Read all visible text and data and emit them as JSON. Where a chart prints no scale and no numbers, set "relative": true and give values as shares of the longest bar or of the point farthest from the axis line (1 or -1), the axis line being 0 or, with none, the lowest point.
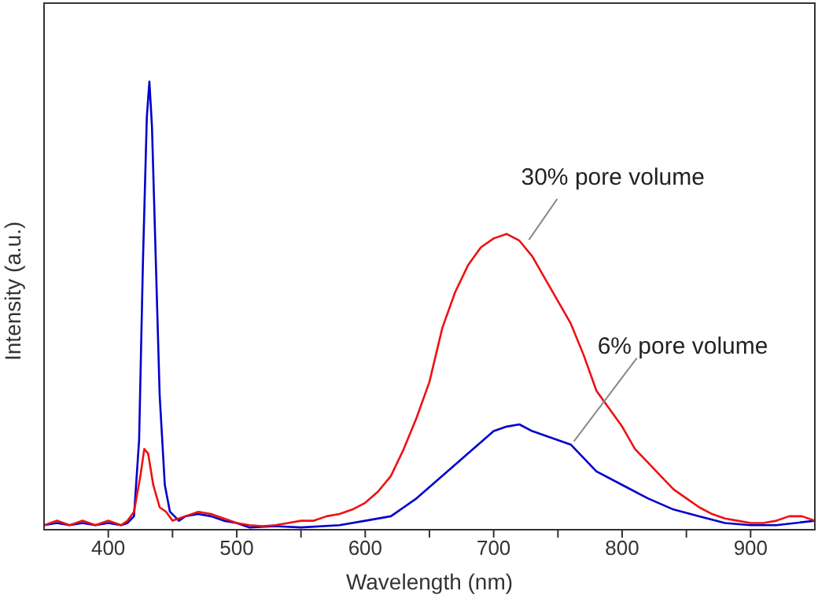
{
  "chart_data": {
    "type": "line",
    "relative": true,
    "xlabel": "Wavelength (nm)",
    "ylabel": "Intensity (a.u.)",
    "xlim": [
      350,
      950
    ],
    "xticks": [
      400,
      {
        "value": 450,
        "label": null
      },
      500,
      {
        "value": 550,
        "label": null
      },
      600,
      {
        "value": 650,
        "label": null
      },
      700,
      {
        "value": 750,
        "label": null
      },
      800,
      {
        "value": 850,
        "label": null
      },
      900
    ],
    "marker": "none",
    "line_style": "solid",
    "annotations": [
      {
        "text": "30% pore volume",
        "x": 725,
        "y": 0.64
      },
      {
        "text": "6% pore volume",
        "x": 760,
        "y": 0.19
      }
    ],
    "series": [
      {
        "color": "#0000cc",
        "x": [
          350,
          360,
          370,
          380,
          390,
          400,
          410,
          415,
          420,
          424,
          427,
          430,
          432,
          434,
          437,
          440,
          444,
          448,
          455,
          460,
          470,
          480,
          490,
          500,
          510,
          530,
          550,
          580,
          600,
          620,
          640,
          660,
          680,
          700,
          710,
          720,
          730,
          740,
          750,
          760,
          780,
          800,
          820,
          840,
          860,
          880,
          900,
          920,
          950
        ],
        "values": [
          0.01,
          0.015,
          0.01,
          0.015,
          0.01,
          0.015,
          0.01,
          0.015,
          0.03,
          0.2,
          0.6,
          0.92,
          1,
          0.9,
          0.6,
          0.3,
          0.1,
          0.04,
          0.02,
          0.03,
          0.035,
          0.03,
          0.02,
          0.015,
          0.005,
          0.008,
          0.005,
          0.01,
          0.02,
          0.03,
          0.07,
          0.12,
          0.17,
          0.22,
          0.23,
          0.235,
          0.22,
          0.21,
          0.2,
          0.19,
          0.13,
          0.1,
          0.07,
          0.045,
          0.03,
          0.015,
          0.01,
          0.01,
          0.02
        ]
      },
      {
        "color": "#ee1111",
        "x": [
          350,
          360,
          370,
          380,
          390,
          400,
          410,
          415,
          420,
          425,
          428,
          431,
          435,
          440,
          445,
          450,
          460,
          470,
          480,
          490,
          500,
          510,
          520,
          530,
          540,
          550,
          560,
          570,
          580,
          590,
          600,
          610,
          620,
          630,
          640,
          650,
          660,
          670,
          680,
          690,
          700,
          710,
          720,
          730,
          740,
          750,
          760,
          770,
          780,
          790,
          800,
          810,
          820,
          830,
          840,
          850,
          860,
          870,
          880,
          890,
          900,
          910,
          920,
          930,
          940,
          950
        ],
        "values": [
          0.01,
          0.02,
          0.01,
          0.02,
          0.01,
          0.02,
          0.01,
          0.02,
          0.04,
          0.12,
          0.18,
          0.17,
          0.1,
          0.05,
          0.04,
          0.02,
          0.03,
          0.04,
          0.035,
          0.025,
          0.015,
          0.01,
          0.008,
          0.01,
          0.015,
          0.02,
          0.02,
          0.03,
          0.035,
          0.045,
          0.06,
          0.085,
          0.12,
          0.18,
          0.25,
          0.33,
          0.45,
          0.53,
          0.59,
          0.63,
          0.65,
          0.66,
          0.645,
          0.61,
          0.56,
          0.51,
          0.46,
          0.39,
          0.31,
          0.27,
          0.23,
          0.18,
          0.15,
          0.12,
          0.09,
          0.07,
          0.05,
          0.035,
          0.025,
          0.02,
          0.015,
          0.015,
          0.02,
          0.03,
          0.03,
          0.02
        ]
      }
    ]
  }
}
